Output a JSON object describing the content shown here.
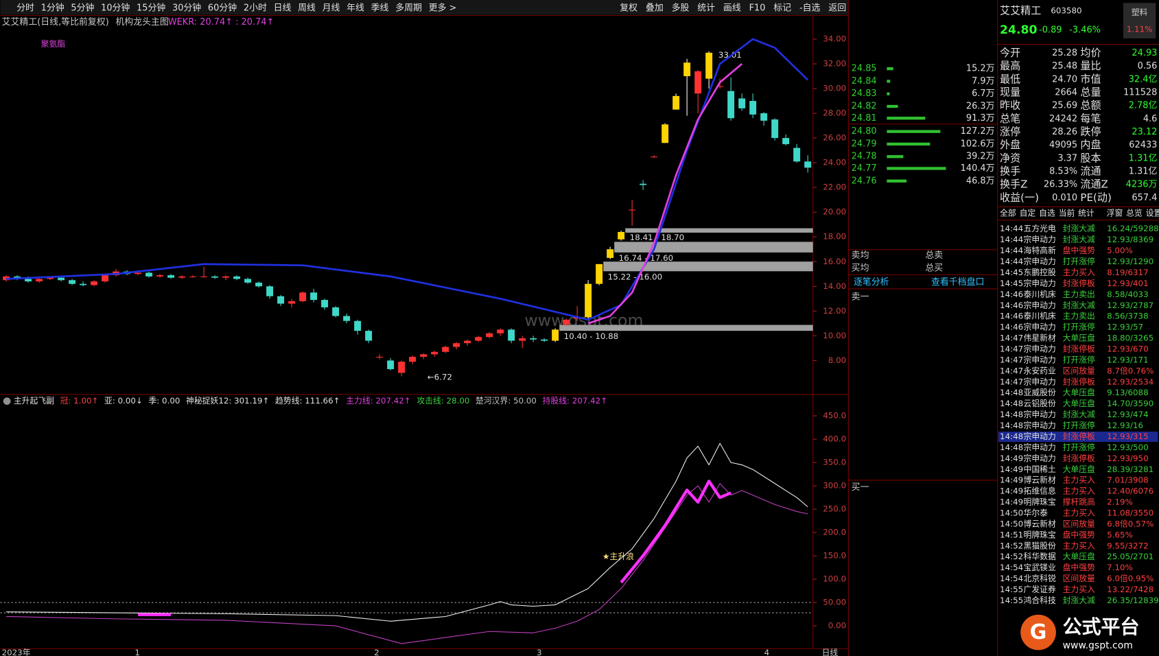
{
  "toolbar": {
    "left": [
      "分时",
      "1分钟",
      "5分钟",
      "10分钟",
      "15分钟",
      "30分钟",
      "60分钟",
      "2小时",
      "日线",
      "周线",
      "月线",
      "年线",
      "季线",
      "多周期",
      "更多 >"
    ],
    "right": [
      "复权",
      "叠加",
      "多股",
      "统计",
      "画线",
      "F10",
      "标记",
      "-自选",
      "返回"
    ]
  },
  "chart": {
    "title": "艾艾精工(日线,等比前复权)",
    "indicator": "机构龙头主图",
    "wekr": "WEKR: 20.74↑ : 20.74↑",
    "sector": "聚氨酯",
    "ylim": [
      5.37,
      35.85
    ],
    "yticks": [
      {
        "value": 34,
        "label": "34.00"
      },
      {
        "value": 32,
        "label": "32.00"
      },
      {
        "value": 30,
        "label": "30.00"
      },
      {
        "value": 28,
        "label": "28.00"
      },
      {
        "value": 26,
        "label": "26.00"
      },
      {
        "value": 24,
        "label": "24.00"
      },
      {
        "value": 22,
        "label": "22.00"
      },
      {
        "value": 20,
        "label": "20.00"
      },
      {
        "value": 18,
        "label": "18.00"
      },
      {
        "value": 16,
        "label": "16.00"
      },
      {
        "value": 14,
        "label": "14.00"
      },
      {
        "value": 12,
        "label": "12.00"
      },
      {
        "value": 10,
        "label": "10.00"
      },
      {
        "value": 8,
        "label": "8.00"
      }
    ],
    "up_color": "#ff3232",
    "down_color": "#3fd8c8",
    "highlight_color": "#ffd400",
    "highlight": [
      50,
      53,
      54,
      55,
      56,
      60,
      61,
      62,
      64
    ],
    "candles": [
      [
        14.5,
        14.9,
        14.4,
        14.8
      ],
      [
        14.8,
        14.9,
        14.5,
        14.6
      ],
      [
        14.6,
        14.8,
        14.3,
        14.4
      ],
      [
        14.4,
        14.7,
        14.3,
        14.6
      ],
      [
        14.6,
        14.8,
        14.5,
        14.7
      ],
      [
        14.7,
        14.8,
        14.4,
        14.5
      ],
      [
        14.5,
        14.6,
        14.1,
        14.2
      ],
      [
        14.2,
        14.4,
        14.0,
        14.1
      ],
      [
        14.1,
        14.5,
        14.0,
        14.4
      ],
      [
        14.4,
        15.0,
        14.3,
        14.9
      ],
      [
        14.9,
        15.4,
        14.8,
        15.2
      ],
      [
        15.2,
        15.3,
        14.9,
        15.0
      ],
      [
        15.0,
        15.3,
        14.9,
        15.1
      ],
      [
        15.1,
        15.2,
        14.7,
        14.8
      ],
      [
        14.8,
        15.0,
        14.7,
        14.9
      ],
      [
        14.9,
        15.0,
        14.6,
        14.7
      ],
      [
        14.7,
        14.9,
        14.6,
        14.8
      ],
      [
        14.8,
        14.9,
        14.7,
        14.8
      ],
      [
        14.8,
        15.6,
        14.7,
        14.8
      ],
      [
        14.8,
        14.9,
        14.6,
        14.7
      ],
      [
        14.7,
        14.9,
        14.5,
        14.8
      ],
      [
        14.8,
        14.9,
        14.5,
        14.6
      ],
      [
        14.6,
        14.7,
        14.2,
        14.3
      ],
      [
        14.3,
        14.4,
        13.9,
        14.0
      ],
      [
        14.0,
        14.1,
        13.0,
        13.2
      ],
      [
        13.2,
        13.3,
        12.4,
        12.6
      ],
      [
        12.6,
        13.0,
        12.3,
        12.8
      ],
      [
        12.8,
        13.6,
        12.7,
        13.5
      ],
      [
        13.5,
        13.8,
        12.7,
        12.9
      ],
      [
        12.9,
        13.0,
        12.1,
        12.3
      ],
      [
        12.3,
        12.4,
        11.5,
        11.6
      ],
      [
        11.6,
        11.8,
        11.0,
        11.2
      ],
      [
        11.2,
        11.3,
        10.1,
        10.4
      ],
      [
        10.4,
        10.5,
        9.4,
        9.6
      ],
      [
        8.3,
        8.5,
        8.1,
        8.3
      ],
      [
        8.0,
        8.2,
        7.2,
        7.3
      ],
      [
        7.0,
        8.0,
        6.72,
        7.9
      ],
      [
        7.9,
        8.4,
        7.7,
        8.3
      ],
      [
        8.3,
        8.6,
        8.1,
        8.5
      ],
      [
        8.5,
        8.8,
        8.3,
        8.7
      ],
      [
        8.7,
        9.2,
        8.6,
        9.1
      ],
      [
        9.1,
        9.5,
        8.9,
        9.4
      ],
      [
        9.4,
        9.7,
        9.2,
        9.6
      ],
      [
        9.6,
        10.0,
        9.5,
        9.9
      ],
      [
        9.9,
        10.3,
        9.8,
        10.2
      ],
      [
        10.2,
        10.6,
        10.0,
        10.5
      ],
      [
        10.5,
        10.6,
        9.4,
        9.6
      ],
      [
        9.6,
        10.0,
        9.0,
        9.8
      ],
      [
        9.8,
        10.0,
        9.5,
        9.7
      ],
      [
        9.7,
        9.8,
        9.5,
        9.6
      ],
      [
        9.6,
        10.6,
        9.5,
        10.5
      ],
      [
        10.9,
        11.4,
        10.8,
        11.3
      ],
      [
        11.4,
        12.4,
        11.2,
        11.5
      ],
      [
        11.5,
        14.5,
        11.4,
        14.2
      ],
      [
        14.2,
        15.8,
        14.1,
        15.8
      ],
      [
        16.3,
        17.2,
        16.2,
        17.0
      ],
      [
        17.8,
        18.5,
        17.7,
        18.4
      ],
      [
        20.2,
        21.0,
        18.9,
        20.2
      ],
      [
        22.3,
        22.6,
        21.8,
        22.2
      ],
      [
        24.5,
        24.6,
        24.4,
        24.5
      ],
      [
        25.6,
        27.2,
        25.6,
        27.1
      ],
      [
        28.3,
        29.6,
        28.3,
        29.4
      ],
      [
        31.0,
        32.4,
        27.8,
        32.1
      ],
      [
        29.6,
        31.5,
        28.0,
        31.4
      ],
      [
        30.8,
        33.01,
        30.0,
        32.9
      ],
      [
        30.2,
        30.8,
        30.0,
        30.2
      ],
      [
        29.8,
        30.9,
        27.4,
        27.6
      ],
      [
        29.2,
        29.6,
        28.2,
        28.4
      ],
      [
        29.0,
        29.6,
        27.6,
        27.9
      ],
      [
        28.0,
        28.1,
        27.0,
        27.4
      ],
      [
        27.5,
        27.6,
        25.8,
        26.0
      ],
      [
        26.0,
        26.3,
        25.4,
        25.5
      ],
      [
        25.2,
        25.5,
        24.0,
        24.1
      ],
      [
        24.1,
        24.6,
        23.2,
        23.6
      ]
    ],
    "lines": [
      {
        "color": "#2030e0",
        "width": 2.5,
        "x": [
          0,
          10,
          18,
          27,
          35,
          45,
          53,
          56,
          59,
          62,
          65,
          68,
          70,
          73
        ],
        "values": [
          14.6,
          15.0,
          15.8,
          15.7,
          14.8,
          13.0,
          11.3,
          12.5,
          17.0,
          25.0,
          32.0,
          34.0,
          33.3,
          30.7
        ]
      },
      {
        "color": "#e040e0",
        "width": 2.5,
        "x": [
          53,
          55,
          57,
          59,
          61,
          63,
          65,
          67
        ],
        "values": [
          11.0,
          11.6,
          13.5,
          17.5,
          23.0,
          27.5,
          30.5,
          32.0
        ]
      }
    ],
    "zones": [
      {
        "low": 18.41,
        "high": 18.7,
        "label": "18.41 - 18.70"
      },
      {
        "low": 16.74,
        "high": 17.6,
        "label": "16.74 - 17.60"
      },
      {
        "low": 15.22,
        "high": 16.0,
        "label": "15.22 - 16.00"
      },
      {
        "low": 10.4,
        "high": 10.88,
        "label": "10.40 - 10.88"
      }
    ],
    "high_label": "33.01",
    "low_label": "←6.72",
    "watermark": "www.gspt.com"
  },
  "indicator": {
    "params": [
      {
        "text": "主升起飞副",
        "color": "#e0e0e0"
      },
      {
        "text": "冠: 1.00↑",
        "color": "#ff4040"
      },
      {
        "text": "亚: 0.00↓",
        "color": "#e0e0e0"
      },
      {
        "text": "季: 0.00",
        "color": "#e0e0e0"
      },
      {
        "text": "神秘捉妖12: 301.19↑",
        "color": "#e0e0e0"
      },
      {
        "text": "趋势线: 111.66↑",
        "color": "#e0e0e0"
      },
      {
        "text": "主力线: 207.42↑",
        "color": "#e040e0"
      },
      {
        "text": "攻击线: 28.00",
        "color": "#40d040"
      },
      {
        "text": "楚河汉界: 50.00",
        "color": "#c0c0c0"
      },
      {
        "text": "持股线: 207.42↑",
        "color": "#e040e0"
      }
    ],
    "ylim": [
      -44,
      491
    ],
    "yticks": [
      {
        "value": 450,
        "label": "450.0"
      },
      {
        "value": 400,
        "label": "400.0"
      },
      {
        "value": 350,
        "label": "350.0"
      },
      {
        "value": 300,
        "label": "300.0"
      },
      {
        "value": 250,
        "label": "250.0"
      },
      {
        "value": 200,
        "label": "200.0"
      },
      {
        "value": 150,
        "label": "150.0"
      },
      {
        "value": 100,
        "label": "100.0"
      },
      {
        "value": 50,
        "label": "50.00"
      },
      {
        "value": 0,
        "label": "0.00"
      }
    ],
    "dotted": [
      50,
      28
    ],
    "series": [
      {
        "color": "#f0f0f0",
        "width": 1,
        "x": [
          0,
          10,
          20,
          30,
          35,
          40,
          44,
          45,
          46,
          48,
          50,
          53,
          55,
          57,
          59,
          61,
          62,
          63,
          64,
          65,
          66,
          67,
          68,
          70,
          72,
          73
        ],
        "values": [
          30,
          28,
          26,
          22,
          10,
          20,
          45,
          52,
          45,
          42,
          45,
          80,
          125,
          165,
          230,
          310,
          360,
          385,
          345,
          391,
          350,
          345,
          335,
          305,
          275,
          255
        ]
      },
      {
        "color": "#c040c0",
        "width": 1,
        "x": [
          0,
          10,
          20,
          30,
          36,
          40,
          44,
          48,
          50,
          52,
          54,
          56,
          58,
          60,
          62,
          63,
          64,
          65,
          66,
          67,
          68,
          70,
          72,
          73
        ],
        "values": [
          20,
          15,
          12,
          0,
          -38,
          -25,
          -12,
          -15,
          -5,
          10,
          35,
          80,
          140,
          210,
          280,
          300,
          265,
          305,
          280,
          290,
          280,
          260,
          245,
          240
        ]
      },
      {
        "color": "#ff30ff",
        "width": 4,
        "x": [
          12,
          13,
          14,
          15
        ],
        "values": [
          24,
          24,
          24,
          24
        ]
      },
      {
        "color": "#ff30ff",
        "width": 4,
        "x": [
          56,
          58,
          60,
          62,
          63,
          64,
          65,
          66
        ],
        "values": [
          93,
          150,
          215,
          291,
          265,
          310,
          275,
          285
        ]
      }
    ],
    "signal": "★主升浪"
  },
  "xaxis": {
    "year": "2023年",
    "months": [
      "1",
      "2",
      "3",
      "4"
    ],
    "period": "日线"
  },
  "orderbook": {
    "asks": {
      "prices": [
        "24.85",
        "24.84",
        "24.83",
        "24.82",
        "24.81"
      ],
      "volumes": [
        15.2,
        7.9,
        6.7,
        26.3,
        91.3
      ],
      "value_labels": [
        "15.2万",
        "7.9万",
        "6.7万",
        "26.3万",
        "91.3万"
      ]
    },
    "bids": {
      "prices": [
        "24.80",
        "24.79",
        "24.78",
        "24.77",
        "24.76"
      ],
      "volumes": [
        127.2,
        102.6,
        39.2,
        140.4,
        46.8
      ],
      "value_labels": [
        "127.2万",
        "102.6万",
        "39.2万",
        "140.4万",
        "46.8万"
      ]
    },
    "labels": [
      "卖均",
      "总卖",
      "买均",
      "总买"
    ],
    "analysis": "逐笔分析",
    "depth": "查看千档盘口",
    "sell1": "卖一",
    "buy1": "买一"
  },
  "quote": {
    "name": "艾艾精工",
    "code": "603580",
    "industry": "塑料",
    "price": "24.80",
    "change": "-0.89",
    "pct": "-3.46%",
    "side": "1.11%",
    "stats": [
      [
        "今开",
        "25.28",
        "均价",
        "24.93"
      ],
      [
        "最高",
        "25.48",
        "量比",
        "0.56"
      ],
      [
        "最低",
        "24.70",
        "市值",
        "32.4亿"
      ],
      [
        "现量",
        "2664",
        "总量",
        "111528"
      ],
      [
        "昨收",
        "25.69",
        "总额",
        "2.78亿"
      ],
      [
        "总笔",
        "24242",
        "每笔",
        "4.6"
      ],
      [
        "涨停",
        "28.26",
        "跌停",
        "23.12"
      ],
      [
        "外盘",
        "49095",
        "内盘",
        "62433"
      ],
      [
        "净资",
        "3.37",
        "股本",
        "1.31亿"
      ],
      [
        "换手",
        "8.53%",
        "流通",
        "1.31亿"
      ],
      [
        "换手Z",
        "26.33%",
        "流通Z",
        "4236万"
      ],
      [
        "收益(一)",
        "0.010",
        "PE(动)",
        "657.4"
      ]
    ]
  },
  "tabs": [
    "全部",
    "自定",
    "自选",
    "当前",
    "统计",
    "浮窗",
    "总览",
    "设置"
  ],
  "trades": [
    [
      "14:44",
      "五方光电",
      "封涨大减",
      "16.24/59288",
      "#3cd03c"
    ],
    [
      "14:44",
      "宗申动力",
      "封涨大减",
      "12.93/8369",
      "#3cd03c"
    ],
    [
      "14:44",
      "海特高新",
      "盘中强势",
      "5.00%",
      "#ff4040"
    ],
    [
      "14:44",
      "宗申动力",
      "打开涨停",
      "12.93/1290",
      "#3cd03c"
    ],
    [
      "14:45",
      "东鹏控股",
      "主力买入",
      "8.19/6317",
      "#ff4040"
    ],
    [
      "14:45",
      "宗申动力",
      "封涨停板",
      "12.93/401",
      "#ff4040"
    ],
    [
      "14:46",
      "泰川机床",
      "主力卖出",
      "8.58/4033",
      "#3cd03c"
    ],
    [
      "14:46",
      "宗申动力",
      "封涨大减",
      "12.93/2787",
      "#3cd03c"
    ],
    [
      "14:46",
      "泰川机床",
      "主力卖出",
      "8.56/3738",
      "#3cd03c"
    ],
    [
      "14:46",
      "宗申动力",
      "打开涨停",
      "12.93/57",
      "#3cd03c"
    ],
    [
      "14:47",
      "伟星新材",
      "大单压盘",
      "18.80/3265",
      "#3cd03c"
    ],
    [
      "14:47",
      "宗申动力",
      "封涨停板",
      "12.93/670",
      "#ff4040"
    ],
    [
      "14:47",
      "宗申动力",
      "打开涨停",
      "12.93/171",
      "#3cd03c"
    ],
    [
      "14:47",
      "永安药业",
      "区间放量",
      "8.7倍0.76%",
      "#ff4040"
    ],
    [
      "14:47",
      "宗申动力",
      "封涨停板",
      "12.93/2534",
      "#ff4040"
    ],
    [
      "14:48",
      "亚威股份",
      "大单压盘",
      "9.13/6088",
      "#3cd03c"
    ],
    [
      "14:48",
      "云铝股份",
      "大单压盘",
      "14.70/3590",
      "#3cd03c"
    ],
    [
      "14:48",
      "宗申动力",
      "封涨大减",
      "12.93/474",
      "#3cd03c"
    ],
    [
      "14:48",
      "宗申动力",
      "打开涨停",
      "12.93/16",
      "#3cd03c"
    ],
    [
      "14:48",
      "宗申动力",
      "封涨停板",
      "12.93/315",
      "#ff4040"
    ],
    [
      "14:48",
      "宗申动力",
      "打开涨停",
      "12.93/500",
      "#3cd03c"
    ],
    [
      "14:49",
      "宗申动力",
      "封涨停板",
      "12.93/950",
      "#ff4040"
    ],
    [
      "14:49",
      "中国稀土",
      "大单压盘",
      "28.39/3281",
      "#3cd03c"
    ],
    [
      "14:49",
      "博云新材",
      "主力买入",
      "7.01/3908",
      "#ff4040"
    ],
    [
      "14:49",
      "拓维信息",
      "主力买入",
      "12.40/6076",
      "#ff4040"
    ],
    [
      "14:49",
      "明牌珠宝",
      "撑杆跳高",
      "2.19%",
      "#ff4040"
    ],
    [
      "14:50",
      "华尔泰",
      "主力买入",
      "11.08/3550",
      "#ff4040"
    ],
    [
      "14:50",
      "博云新材",
      "区间放量",
      "6.8倍0.57%",
      "#ff4040"
    ],
    [
      "14:51",
      "明牌珠宝",
      "盘中强势",
      "5.65%",
      "#ff4040"
    ],
    [
      "14:52",
      "黑猫股份",
      "主力买入",
      "9.55/3272",
      "#ff4040"
    ],
    [
      "14:52",
      "科华数据",
      "大单压盘",
      "25.05/2701",
      "#3cd03c"
    ],
    [
      "14:54",
      "宝武镁业",
      "盘中强势",
      "7.10%",
      "#ff4040"
    ],
    [
      "14:54",
      "北京科锐",
      "区间放量",
      "6.0倍0.95%",
      "#ff4040"
    ],
    [
      "14:55",
      "广发证券",
      "主力买入",
      "13.22/7428",
      "#ff4040"
    ],
    [
      "14:55",
      "鸿合科技",
      "封涨大减",
      "26.35/12839",
      "#3cd03c"
    ]
  ],
  "selected_trade": 19,
  "logo": {
    "name": "公式平台",
    "url": "www.gspt.com"
  }
}
